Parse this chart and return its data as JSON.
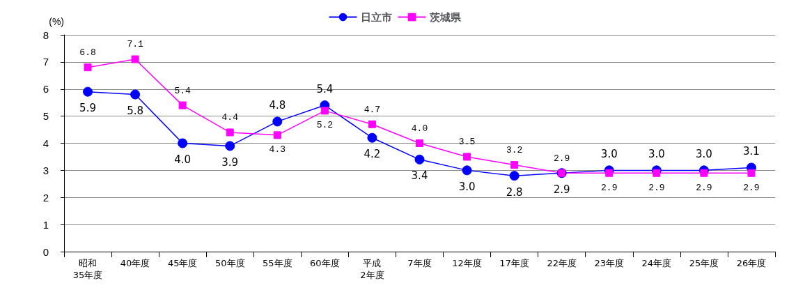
{
  "chart_data": {
    "type": "line",
    "ylabel": "(%)",
    "categories": [
      "昭和\n35年度",
      "40年度",
      "45年度",
      "50年度",
      "55年度",
      "60年度",
      "平成\n2年度",
      "7年度",
      "12年度",
      "17年度",
      "22年度",
      "23年度",
      "24年度",
      "25年度",
      "26年度"
    ],
    "series": [
      {
        "name": "日立市",
        "color": "#0000ff",
        "marker": "circle",
        "values": [
          5.9,
          5.8,
          4.0,
          3.9,
          4.8,
          5.4,
          4.2,
          3.4,
          3.0,
          2.8,
          2.9,
          3.0,
          3.0,
          3.0,
          3.1
        ],
        "value_labels": [
          "5.9",
          "5.8",
          "4.0",
          "3.9",
          "4.8",
          "5.4",
          "4.2",
          "3.4",
          "3.0",
          "2.8",
          "2.9",
          "3.0",
          "3.0",
          "3.0",
          "3.1"
        ]
      },
      {
        "name": "茨城県",
        "color": "#ff00ff",
        "marker": "square",
        "values": [
          6.8,
          7.1,
          5.4,
          4.4,
          4.3,
          5.2,
          4.7,
          4.0,
          3.5,
          3.2,
          2.9,
          2.9,
          2.9,
          2.9,
          2.9
        ],
        "value_labels": [
          "6.8",
          "7.1",
          "5.4",
          "4.4",
          "4.3",
          "5.2",
          "4.7",
          "4.0",
          "3.5",
          "3.2",
          "2.9",
          "2.9",
          "2.9",
          "2.9",
          "2.9"
        ]
      }
    ],
    "ylim": [
      0,
      8
    ],
    "yticks": [
      0,
      1,
      2,
      3,
      4,
      5,
      6,
      7,
      8
    ],
    "grid": "y",
    "legend": "top",
    "line_style": "solid"
  }
}
